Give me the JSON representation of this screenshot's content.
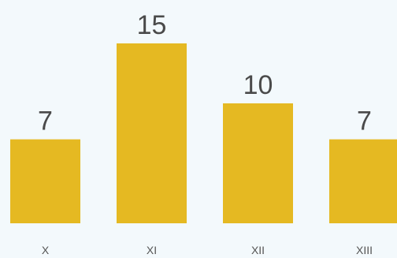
{
  "chart_data": {
    "type": "bar",
    "categories": [
      "X",
      "XI",
      "XII",
      "XIII"
    ],
    "values": [
      7,
      15,
      10,
      7
    ],
    "data_labels": [
      "7",
      "15",
      "10",
      "7"
    ],
    "ylim": [
      0,
      15
    ],
    "grid": false,
    "colors": {
      "bar": "#e5b922",
      "value_text": "#4a4a4a",
      "category_text": "#555555",
      "background": "#f3f9fc"
    }
  }
}
